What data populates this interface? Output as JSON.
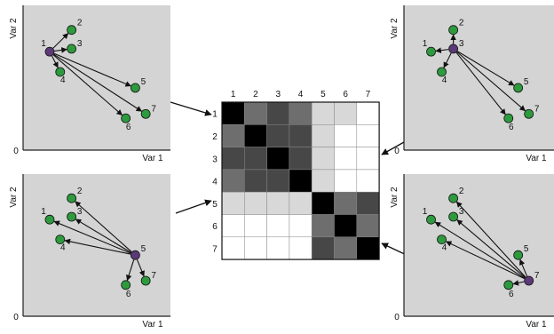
{
  "colors": {
    "panel_bg": "#d4d4d4",
    "point_green": "#2e9a3e",
    "point_purple": "#5c3a78",
    "arrow": "#111111"
  },
  "panel_axes": {
    "y_label": "Var 2",
    "x_label": "Var 1",
    "origin_label": "0"
  },
  "panels": [
    {
      "name": "top-left",
      "focus": 1,
      "points": [
        {
          "label": "1",
          "x": 0.28,
          "y": 0.68
        },
        {
          "label": "2",
          "x": 0.51,
          "y": 0.83
        },
        {
          "label": "3",
          "x": 0.51,
          "y": 0.7
        },
        {
          "label": "4",
          "x": 0.39,
          "y": 0.54
        },
        {
          "label": "5",
          "x": 1.18,
          "y": 0.43
        },
        {
          "label": "6",
          "x": 1.08,
          "y": 0.22
        },
        {
          "label": "7",
          "x": 1.29,
          "y": 0.25
        }
      ]
    },
    {
      "name": "top-right",
      "focus": 3,
      "points": [
        {
          "label": "1",
          "x": 0.28,
          "y": 0.68
        },
        {
          "label": "2",
          "x": 0.51,
          "y": 0.83
        },
        {
          "label": "3",
          "x": 0.51,
          "y": 0.7
        },
        {
          "label": "4",
          "x": 0.39,
          "y": 0.54
        },
        {
          "label": "5",
          "x": 1.18,
          "y": 0.43
        },
        {
          "label": "6",
          "x": 1.08,
          "y": 0.22
        },
        {
          "label": "7",
          "x": 1.29,
          "y": 0.25
        }
      ]
    },
    {
      "name": "bottom-left",
      "focus": 5,
      "points": [
        {
          "label": "1",
          "x": 0.28,
          "y": 0.68
        },
        {
          "label": "2",
          "x": 0.51,
          "y": 0.83
        },
        {
          "label": "3",
          "x": 0.51,
          "y": 0.7
        },
        {
          "label": "4",
          "x": 0.39,
          "y": 0.54
        },
        {
          "label": "5",
          "x": 1.18,
          "y": 0.43
        },
        {
          "label": "6",
          "x": 1.08,
          "y": 0.22
        },
        {
          "label": "7",
          "x": 1.29,
          "y": 0.25
        }
      ]
    },
    {
      "name": "bottom-right",
      "focus": 7,
      "points": [
        {
          "label": "1",
          "x": 0.28,
          "y": 0.68
        },
        {
          "label": "2",
          "x": 0.51,
          "y": 0.83
        },
        {
          "label": "3",
          "x": 0.51,
          "y": 0.7
        },
        {
          "label": "4",
          "x": 0.39,
          "y": 0.54
        },
        {
          "label": "5",
          "x": 1.18,
          "y": 0.43
        },
        {
          "label": "6",
          "x": 1.08,
          "y": 0.22
        },
        {
          "label": "7",
          "x": 1.29,
          "y": 0.25
        }
      ]
    }
  ],
  "matrix": {
    "labels": [
      "1",
      "2",
      "3",
      "4",
      "5",
      "6",
      "7"
    ],
    "shades": [
      [
        "#000000",
        "#6e6e6e",
        "#474747",
        "#6e6e6e",
        "#d8d8d8",
        "#d8d8d8",
        "#ffffff"
      ],
      [
        "#6e6e6e",
        "#000000",
        "#474747",
        "#474747",
        "#d8d8d8",
        "#ffffff",
        "#ffffff"
      ],
      [
        "#474747",
        "#474747",
        "#000000",
        "#474747",
        "#d8d8d8",
        "#ffffff",
        "#ffffff"
      ],
      [
        "#6e6e6e",
        "#474747",
        "#474747",
        "#000000",
        "#d8d8d8",
        "#ffffff",
        "#ffffff"
      ],
      [
        "#d8d8d8",
        "#d8d8d8",
        "#d8d8d8",
        "#d8d8d8",
        "#000000",
        "#6e6e6e",
        "#474747"
      ],
      [
        "#ffffff",
        "#ffffff",
        "#ffffff",
        "#ffffff",
        "#6e6e6e",
        "#000000",
        "#6e6e6e"
      ],
      [
        "#ffffff",
        "#ffffff",
        "#ffffff",
        "#ffffff",
        "#474747",
        "#6e6e6e",
        "#000000"
      ]
    ]
  }
}
